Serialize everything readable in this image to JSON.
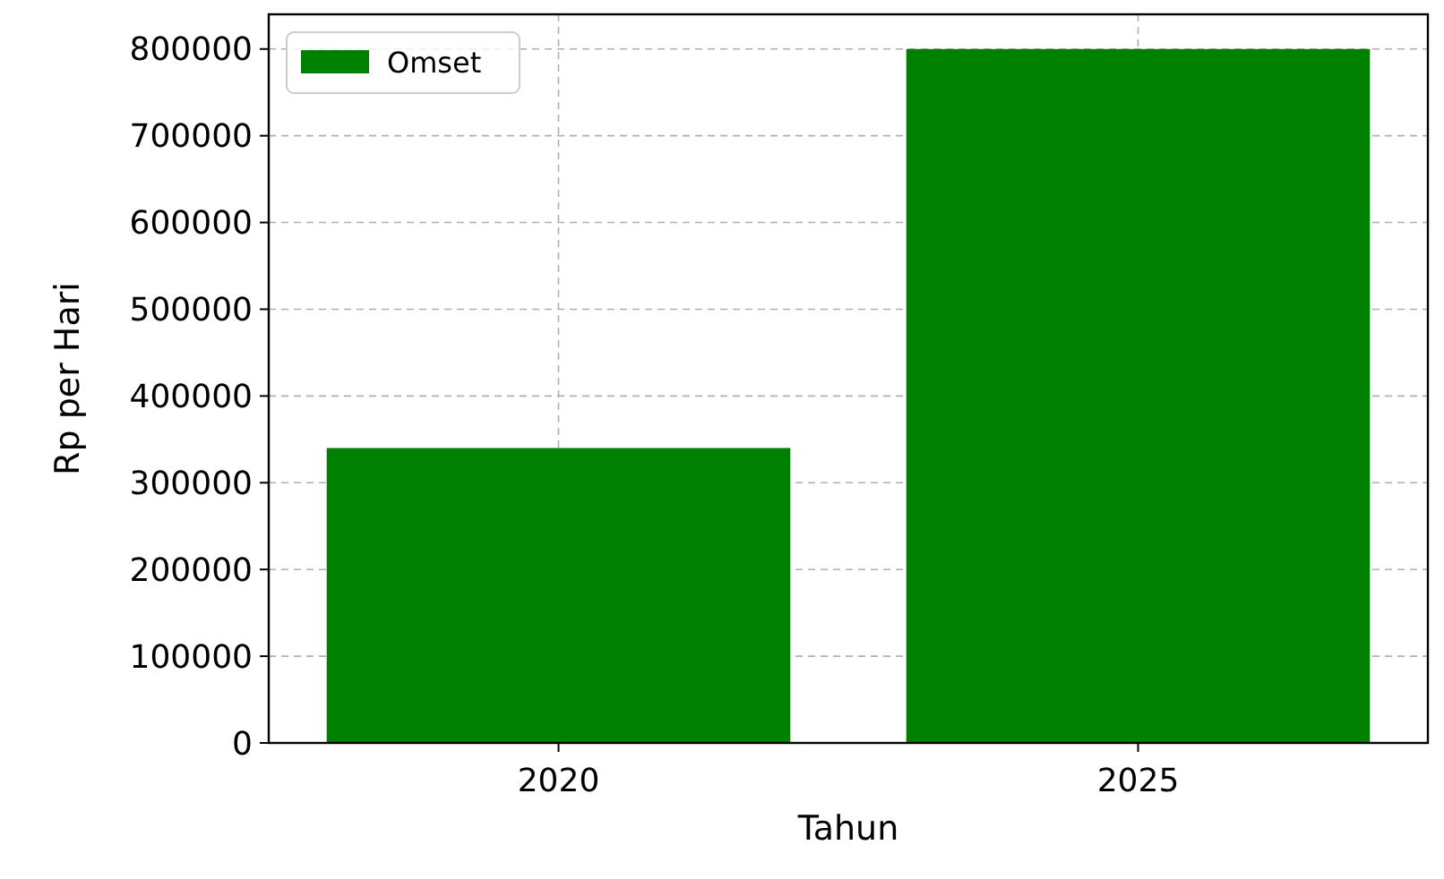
{
  "chart_data": {
    "type": "bar",
    "xlabel": "Tahun",
    "ylabel": "Rp per Hari",
    "categories": [
      "2020",
      "2025"
    ],
    "series": [
      {
        "name": "Omset",
        "color": "#008000",
        "values": [
          340000,
          800000
        ]
      }
    ],
    "ylim": [
      0,
      840000
    ],
    "yticks": [
      0,
      100000,
      200000,
      300000,
      400000,
      500000,
      600000,
      700000,
      800000
    ],
    "grid": true,
    "legend": "top left"
  }
}
